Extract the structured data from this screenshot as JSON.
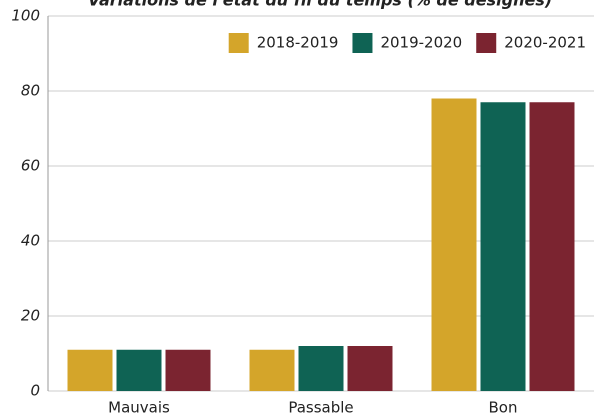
{
  "chart_data": {
    "type": "bar",
    "title": "Variations de l'état du fil du temps (% de désignés)",
    "categories": [
      "Mauvais",
      "Passable",
      "Bon"
    ],
    "series": [
      {
        "name": "2018-2019",
        "color": "#d4a52a",
        "values": [
          11,
          11,
          78
        ]
      },
      {
        "name": "2019-2020",
        "color": "#0f6354",
        "values": [
          11,
          12,
          77
        ]
      },
      {
        "name": "2020-2021",
        "color": "#7b2430",
        "values": [
          11,
          12,
          77
        ]
      }
    ],
    "ylim": [
      0,
      100
    ],
    "yticks": [
      0,
      20,
      40,
      60,
      80,
      100
    ],
    "grid": true,
    "legend": "top-right"
  }
}
